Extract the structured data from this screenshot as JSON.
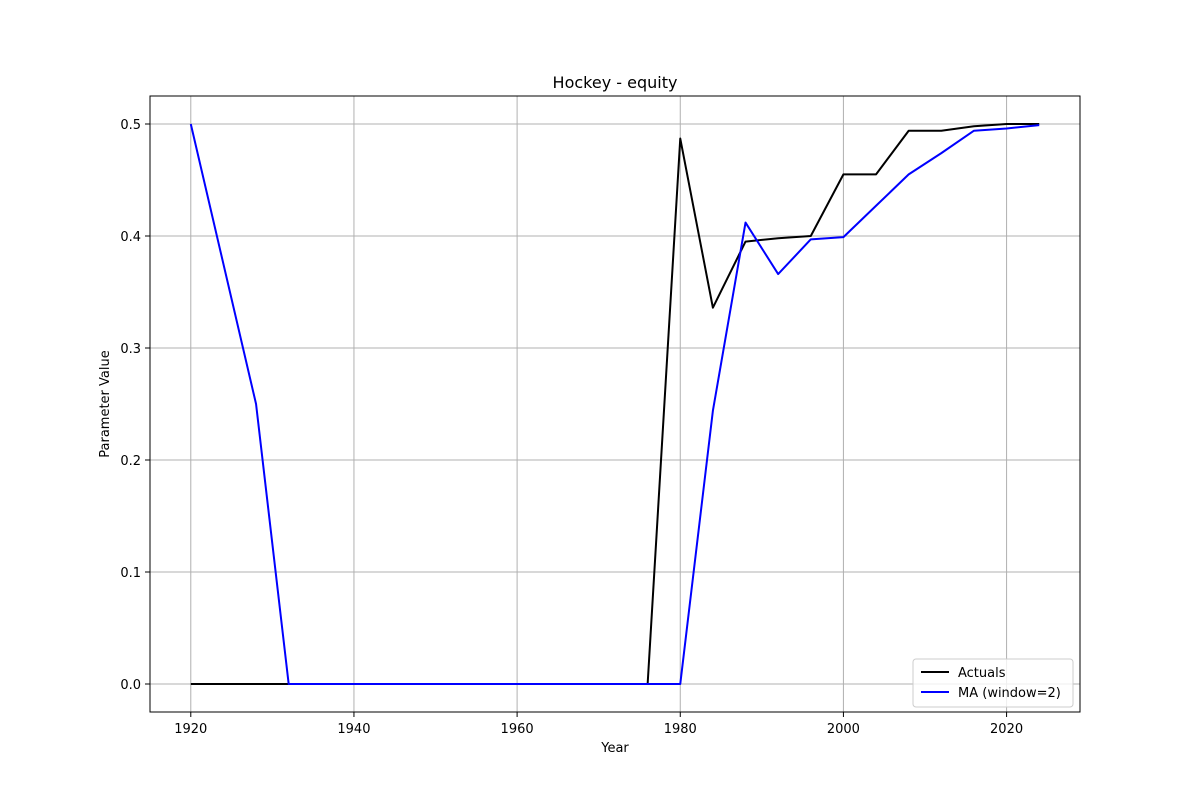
{
  "chart_data": {
    "type": "line",
    "title": "Hockey - equity",
    "xlabel": "Year",
    "ylabel": "Parameter Value",
    "xlim": [
      1915,
      2029
    ],
    "ylim": [
      -0.025,
      0.525
    ],
    "xticks": [
      1920,
      1940,
      1960,
      1980,
      2000,
      2020
    ],
    "yticks": [
      0.0,
      0.1,
      0.2,
      0.3,
      0.4,
      0.5
    ],
    "ytick_labels": [
      "0.0",
      "0.1",
      "0.2",
      "0.3",
      "0.4",
      "0.5"
    ],
    "grid": true,
    "legend_position": "lower-right",
    "series": [
      {
        "name": "Actuals",
        "color": "#000000",
        "x": [
          1920,
          1924,
          1928,
          1932,
          1936,
          1940,
          1944,
          1948,
          1952,
          1956,
          1960,
          1964,
          1968,
          1972,
          1976,
          1980,
          1984,
          1988,
          1992,
          1996,
          2000,
          2004,
          2008,
          2012,
          2016,
          2020,
          2024
        ],
        "y": [
          0.0,
          0.0,
          0.0,
          0.0,
          0.0,
          0.0,
          0.0,
          0.0,
          0.0,
          0.0,
          0.0,
          0.0,
          0.0,
          0.0,
          0.0,
          0.487,
          0.336,
          0.395,
          0.398,
          0.4,
          0.455,
          0.455,
          0.494,
          0.494,
          0.498,
          0.5,
          0.5
        ]
      },
      {
        "name": "MA (window=2)",
        "color": "#0000ff",
        "x": [
          1920,
          1928,
          1932,
          1936,
          1940,
          1944,
          1948,
          1952,
          1956,
          1960,
          1964,
          1968,
          1972,
          1976,
          1980,
          1984,
          1988,
          1992,
          1996,
          2000,
          2004,
          2008,
          2012,
          2016,
          2020,
          2024
        ],
        "y": [
          0.5,
          0.25,
          0.0,
          0.0,
          0.0,
          0.0,
          0.0,
          0.0,
          0.0,
          0.0,
          0.0,
          0.0,
          0.0,
          0.0,
          0.0,
          0.244,
          0.412,
          0.366,
          0.397,
          0.399,
          0.427,
          0.455,
          0.474,
          0.494,
          0.496,
          0.499
        ]
      }
    ]
  }
}
